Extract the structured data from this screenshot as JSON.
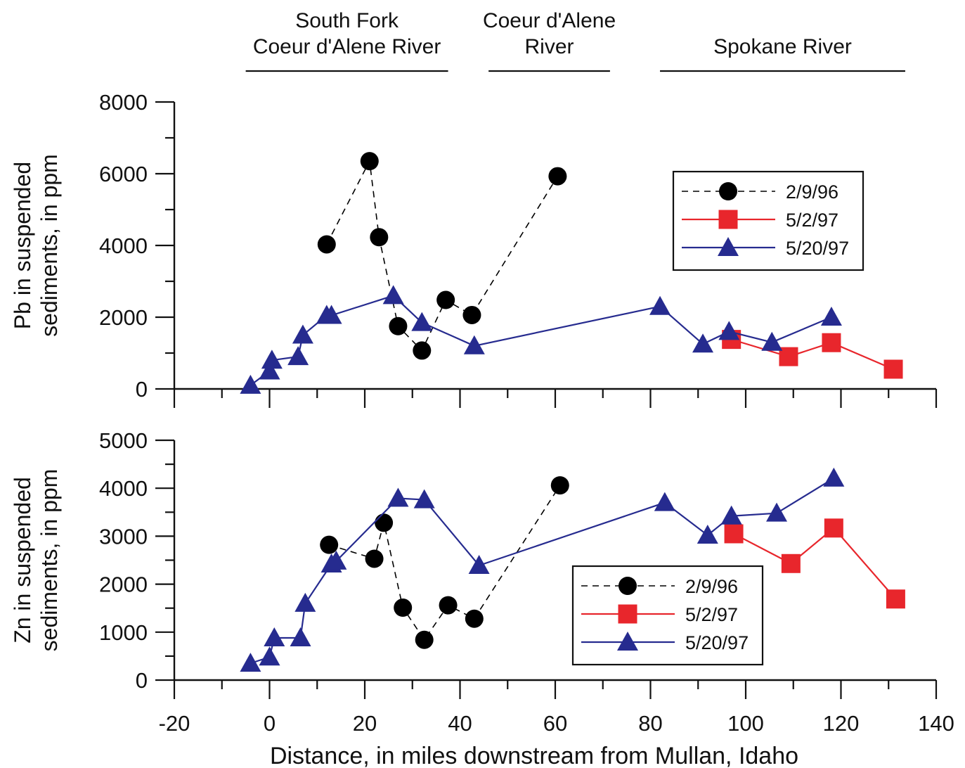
{
  "river_labels": [
    {
      "lines": [
        "South Fork",
        "Coeur d'Alene River"
      ],
      "x_range": [
        -5,
        37.5
      ]
    },
    {
      "lines": [
        "Coeur d'Alene",
        "River"
      ],
      "x_range": [
        46,
        71.5
      ]
    },
    {
      "lines": [
        "Spokane River"
      ],
      "x_range": [
        82,
        133.5
      ]
    }
  ],
  "xlabel": "Distance, in miles downstream from Mullan, Idaho",
  "colors": {
    "black_series": "#000000",
    "red_series": "#e8262c",
    "blue_series": "#262b8f"
  },
  "chart_data": [
    {
      "type": "line",
      "ylabel_lines": [
        "Pb in suspended",
        "sediments, in ppm"
      ],
      "xlim": [
        -20,
        140
      ],
      "ylim": [
        0,
        8000
      ],
      "xticks": [
        -20,
        0,
        20,
        40,
        60,
        80,
        100,
        120,
        140
      ],
      "yticks": [
        0,
        2000,
        4000,
        6000,
        8000
      ],
      "ytick_labels": [
        "0",
        "2000",
        "4000",
        "6000",
        "8000"
      ],
      "legend_position": "upper-right",
      "series": [
        {
          "name": "2/9/96",
          "marker": "circle",
          "line": "dashed",
          "color": "#000000",
          "x": [
            12,
            21,
            23,
            27,
            32,
            37,
            42.5,
            60.5
          ],
          "y": [
            4030,
            6350,
            4230,
            1750,
            1070,
            2480,
            2060,
            5930
          ]
        },
        {
          "name": "5/2/97",
          "marker": "square",
          "line": "solid",
          "color": "#e8262c",
          "x": [
            97,
            109,
            118,
            131
          ],
          "y": [
            1380,
            900,
            1290,
            550
          ]
        },
        {
          "name": "5/20/97",
          "marker": "triangle",
          "line": "solid",
          "color": "#262b8f",
          "x": [
            -4,
            0,
            0.5,
            6,
            7,
            12,
            13,
            26,
            32,
            43,
            82,
            91,
            96.5,
            105.5,
            118
          ],
          "y": [
            100,
            500,
            800,
            900,
            1500,
            2050,
            2050,
            2600,
            1850,
            1200,
            2300,
            1250,
            1600,
            1300,
            2000
          ]
        }
      ]
    },
    {
      "type": "line",
      "ylabel_lines": [
        "Zn in suspended",
        "sediments, in ppm"
      ],
      "xlim": [
        -20,
        140
      ],
      "ylim": [
        0,
        5000
      ],
      "xticks": [
        -20,
        0,
        20,
        40,
        60,
        80,
        100,
        120,
        140
      ],
      "xtick_labels": [
        "-20",
        "0",
        "20",
        "40",
        "60",
        "80",
        "100",
        "120",
        "140"
      ],
      "yticks": [
        0,
        1000,
        2000,
        3000,
        4000,
        5000
      ],
      "ytick_labels": [
        "0",
        "1000",
        "2000",
        "3000",
        "4000",
        "5000"
      ],
      "legend_position": "lower-center",
      "series": [
        {
          "name": "2/9/96",
          "marker": "circle",
          "line": "dashed",
          "color": "#000000",
          "x": [
            12.5,
            22,
            24,
            28,
            32.5,
            37.5,
            43,
            61
          ],
          "y": [
            2820,
            2530,
            3280,
            1510,
            840,
            1560,
            1280,
            4060
          ]
        },
        {
          "name": "5/2/97",
          "marker": "square",
          "line": "solid",
          "color": "#e8262c",
          "x": [
            97.5,
            109.5,
            118.5,
            131.5
          ],
          "y": [
            3050,
            2430,
            3170,
            1690
          ]
        },
        {
          "name": "5/20/97",
          "marker": "triangle",
          "line": "solid",
          "color": "#262b8f",
          "x": [
            -4,
            0,
            1,
            6.5,
            7.5,
            13,
            14,
            27,
            32.5,
            44,
            83,
            92,
            97,
            106.5,
            118.5
          ],
          "y": [
            350,
            480,
            880,
            880,
            1600,
            2420,
            2480,
            3790,
            3760,
            2390,
            3700,
            3020,
            3420,
            3480,
            4210
          ]
        }
      ]
    }
  ]
}
